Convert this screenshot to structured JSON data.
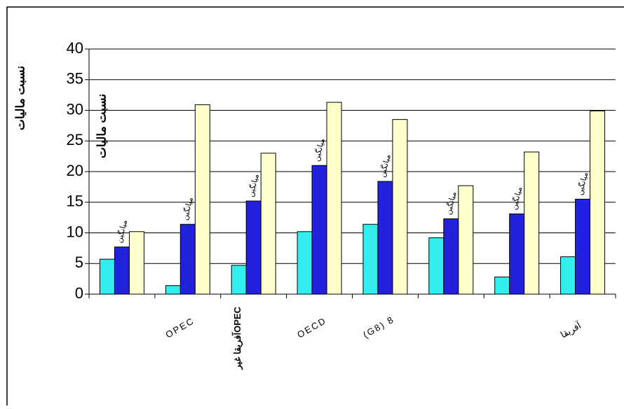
{
  "chart_data": {
    "type": "bar",
    "y_label": "نسبت مالیات",
    "bar_note": "میانگین",
    "categories": [
      null,
      "OPEC",
      "آفریقا غیرOPEC",
      "OECD",
      "(G8) 8",
      null,
      null,
      "آفریقا"
    ],
    "series": [
      {
        "color": "#33eeee",
        "values": [
          5.7,
          1.4,
          4.7,
          10.2,
          11.4,
          9.2,
          2.8,
          6.1
        ]
      },
      {
        "color": "#2222dd",
        "values": [
          7.7,
          11.4,
          15.2,
          21.0,
          18.4,
          12.3,
          13.1,
          15.5
        ]
      },
      {
        "color": "#ffffcc",
        "values": [
          10.2,
          30.9,
          23.0,
          31.3,
          28.5,
          17.7,
          23.2,
          29.9
        ]
      }
    ],
    "ylim": [
      0,
      40
    ],
    "yticks": [
      0,
      5,
      10,
      15,
      20,
      25,
      30,
      35,
      40
    ],
    "grid": true
  }
}
